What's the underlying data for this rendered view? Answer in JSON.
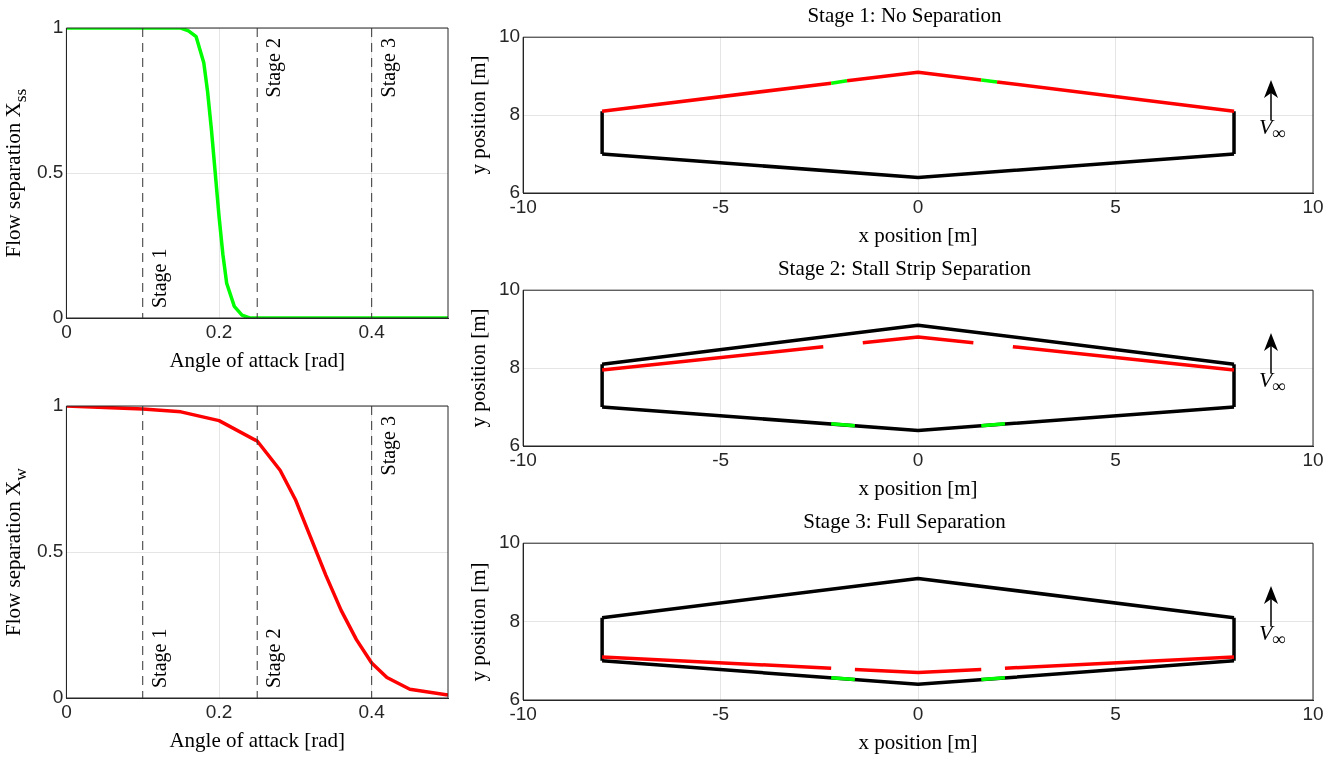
{
  "chart_data": [
    {
      "type": "line",
      "xlabel": "Angle of attack [rad]",
      "ylabel": "Flow separation X$_{ss}$",
      "x": [
        0,
        0.1,
        0.15,
        0.16,
        0.17,
        0.18,
        0.185,
        0.19,
        0.195,
        0.2,
        0.205,
        0.21,
        0.22,
        0.23,
        0.24,
        0.3,
        0.4,
        0.5
      ],
      "series": [
        {
          "color": "#00ff00",
          "values": [
            1,
            1,
            1,
            0.99,
            0.97,
            0.88,
            0.78,
            0.65,
            0.5,
            0.35,
            0.22,
            0.12,
            0.04,
            0.01,
            0,
            0,
            0,
            0
          ]
        }
      ],
      "xlim": [
        0,
        0.5
      ],
      "ylim": [
        0,
        1
      ],
      "xticks": [
        0,
        0.2,
        0.4
      ],
      "yticks": [
        0,
        0.5,
        1
      ],
      "grid": true,
      "ref_lines": [
        {
          "axis": "x",
          "value": 0.1,
          "label": "Stage 1",
          "line_style": "dashed",
          "color": "#333333"
        },
        {
          "axis": "x",
          "value": 0.25,
          "label": "Stage 2",
          "line_style": "dashed",
          "color": "#333333"
        },
        {
          "axis": "x",
          "value": 0.4,
          "label": "Stage 3",
          "line_style": "dashed",
          "color": "#333333"
        }
      ]
    },
    {
      "type": "line",
      "xlabel": "Angle of attack [rad]",
      "ylabel": "Flow separation X$_{w}$",
      "x": [
        0,
        0.1,
        0.15,
        0.2,
        0.25,
        0.28,
        0.3,
        0.32,
        0.34,
        0.36,
        0.38,
        0.4,
        0.42,
        0.45,
        0.5
      ],
      "series": [
        {
          "color": "#ff0000",
          "values": [
            1,
            0.99,
            0.98,
            0.95,
            0.88,
            0.78,
            0.68,
            0.55,
            0.42,
            0.3,
            0.2,
            0.12,
            0.07,
            0.03,
            0.01
          ]
        }
      ],
      "xlim": [
        0,
        0.5
      ],
      "ylim": [
        0,
        1
      ],
      "xticks": [
        0,
        0.2,
        0.4
      ],
      "yticks": [
        0,
        0.5,
        1
      ],
      "grid": true,
      "ref_lines": [
        {
          "axis": "x",
          "value": 0.1,
          "label": "Stage 1",
          "line_style": "dashed",
          "color": "#333333"
        },
        {
          "axis": "x",
          "value": 0.25,
          "label": "Stage 2",
          "line_style": "dashed",
          "color": "#333333"
        },
        {
          "axis": "x",
          "value": 0.4,
          "label": "Stage 3",
          "line_style": "dashed",
          "color": "#333333"
        }
      ]
    },
    {
      "type": "line",
      "title": "Stage 1: No Separation",
      "xlabel": "x position [m]",
      "ylabel": "y position [m]",
      "series": [
        {
          "color": "#000000",
          "x": [
            -8,
            0,
            8
          ],
          "values": [
            7.0,
            6.4,
            7.0
          ]
        },
        {
          "color": "#000000",
          "x": [
            -8,
            -8
          ],
          "values": [
            7.0,
            8.1
          ]
        },
        {
          "color": "#000000",
          "x": [
            8,
            8
          ],
          "values": [
            7.0,
            8.1
          ]
        },
        {
          "color": "#ff0000",
          "x": [
            -8,
            -2.2
          ],
          "values": [
            8.1,
            8.82
          ]
        },
        {
          "color": "#ff0000",
          "x": [
            -1.8,
            0,
            1.6
          ],
          "values": [
            8.88,
            9.1,
            8.9
          ]
        },
        {
          "color": "#ff0000",
          "x": [
            2.0,
            8
          ],
          "values": [
            8.85,
            8.1
          ]
        },
        {
          "color": "#00ff00",
          "x": [
            -2.2,
            -1.8
          ],
          "values": [
            8.82,
            8.88
          ]
        },
        {
          "color": "#00ff00",
          "x": [
            1.6,
            2.0
          ],
          "values": [
            8.9,
            8.85
          ]
        }
      ],
      "xlim": [
        -10,
        10
      ],
      "ylim": [
        6,
        10
      ],
      "xticks": [
        -10,
        -5,
        0,
        5,
        10
      ],
      "yticks": [
        6,
        8,
        10
      ],
      "grid": true,
      "annotations": [
        "V$_{∞}$"
      ]
    },
    {
      "type": "line",
      "title": "Stage 2: Stall Strip Separation",
      "xlabel": "x position [m]",
      "ylabel": "y position [m]",
      "series": [
        {
          "color": "#000000",
          "x": [
            -8,
            0,
            8
          ],
          "values": [
            8.1,
            9.1,
            8.1
          ]
        },
        {
          "color": "#000000",
          "x": [
            -8,
            0,
            8
          ],
          "values": [
            7.0,
            6.4,
            7.0
          ]
        },
        {
          "color": "#000000",
          "x": [
            -8,
            -8
          ],
          "values": [
            7.0,
            8.1
          ]
        },
        {
          "color": "#000000",
          "x": [
            8,
            8
          ],
          "values": [
            7.0,
            8.1
          ]
        },
        {
          "color": "#ff0000",
          "x": [
            -8,
            -2.4
          ],
          "values": [
            7.95,
            8.55
          ]
        },
        {
          "color": "#ff0000",
          "x": [
            -1.4,
            0,
            1.4
          ],
          "values": [
            8.65,
            8.8,
            8.65
          ]
        },
        {
          "color": "#ff0000",
          "x": [
            2.4,
            8
          ],
          "values": [
            8.55,
            7.95
          ]
        },
        {
          "color": "#00ff00",
          "x": [
            -2.2,
            -1.6
          ],
          "values": [
            6.57,
            6.52
          ]
        },
        {
          "color": "#00ff00",
          "x": [
            1.6,
            2.2
          ],
          "values": [
            6.52,
            6.57
          ]
        }
      ],
      "xlim": [
        -10,
        10
      ],
      "ylim": [
        6,
        10
      ],
      "xticks": [
        -10,
        -5,
        0,
        5,
        10
      ],
      "yticks": [
        6,
        8,
        10
      ],
      "grid": true,
      "annotations": [
        "V$_{∞}$"
      ]
    },
    {
      "type": "line",
      "title": "Stage 3: Full Separation",
      "xlabel": "x position [m]",
      "ylabel": "y position [m]",
      "series": [
        {
          "color": "#000000",
          "x": [
            -8,
            0,
            8
          ],
          "values": [
            8.1,
            9.1,
            8.1
          ]
        },
        {
          "color": "#000000",
          "x": [
            -8,
            0,
            8
          ],
          "values": [
            7.0,
            6.4,
            7.0
          ]
        },
        {
          "color": "#000000",
          "x": [
            -8,
            -8
          ],
          "values": [
            7.0,
            8.1
          ]
        },
        {
          "color": "#000000",
          "x": [
            8,
            8
          ],
          "values": [
            7.0,
            8.1
          ]
        },
        {
          "color": "#ff0000",
          "x": [
            -8,
            -2.2
          ],
          "values": [
            7.1,
            6.81
          ]
        },
        {
          "color": "#ff0000",
          "x": [
            -1.6,
            0,
            1.6
          ],
          "values": [
            6.78,
            6.7,
            6.78
          ]
        },
        {
          "color": "#ff0000",
          "x": [
            2.2,
            8
          ],
          "values": [
            6.81,
            7.1
          ]
        },
        {
          "color": "#00ff00",
          "x": [
            -2.2,
            -1.6
          ],
          "values": [
            6.57,
            6.52
          ]
        },
        {
          "color": "#00ff00",
          "x": [
            1.6,
            2.2
          ],
          "values": [
            6.52,
            6.57
          ]
        }
      ],
      "xlim": [
        -10,
        10
      ],
      "ylim": [
        6,
        10
      ],
      "xticks": [
        -10,
        -5,
        0,
        5,
        10
      ],
      "yticks": [
        6,
        8,
        10
      ],
      "grid": true,
      "annotations": [
        "V$_{∞}$"
      ]
    }
  ]
}
